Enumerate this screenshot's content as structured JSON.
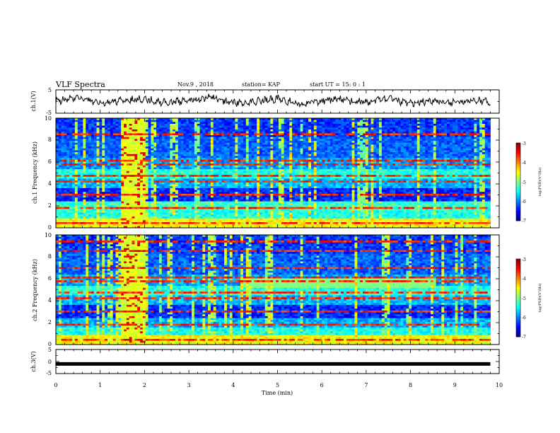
{
  "header": {
    "title": "VLF Spectra",
    "date": "Nov.9 , 2018",
    "station": "station= KAP",
    "start": "start UT = 15: 0 : 1"
  },
  "colors": {
    "spec_low": "#00007f",
    "spec_mid_blue": "#0060ff",
    "spec_cyan": "#19ffe6",
    "spec_green": "#7dff7d",
    "spec_yellow": "#ffe600",
    "spec_red": "#ff1a00",
    "spec_high": "#7f0000",
    "trace": "#000000"
  },
  "chart_data": [
    {
      "type": "line",
      "panel": "waveform-ch1",
      "ylabel": "ch.1(V)",
      "ylim": [
        -5,
        5
      ],
      "yticks": [
        "5",
        "-5"
      ],
      "xlim": [
        0,
        10
      ],
      "series": [
        {
          "x": [
            0,
            0.5,
            1,
            1.5,
            2,
            2.5,
            3,
            3.5,
            4,
            4.5,
            5,
            5.5,
            6,
            6.5,
            7,
            7.5,
            8,
            8.5,
            9,
            9.5,
            9.8
          ],
          "values": [
            0.3,
            1.5,
            -0.8,
            0.6,
            1.0,
            -0.5,
            0.4,
            1.8,
            -0.6,
            0.2,
            1.1,
            -1.2,
            0.5,
            0.8,
            -0.4,
            1.0,
            -0.9,
            0.3,
            -0.6,
            0.9,
            -0.5
          ]
        }
      ]
    },
    {
      "type": "heatmap",
      "panel": "spectrogram-ch1",
      "ylabel": "ch.1 Frequency (kHz)",
      "ylim": [
        0,
        10
      ],
      "yticks": [
        "0",
        "2",
        "4",
        "6",
        "8",
        "10"
      ],
      "xlim": [
        0,
        9.8
      ],
      "burst_interval_min": [
        1.45,
        2.0
      ],
      "colorbar": {
        "label": "log(PSD)(V²/Hz)",
        "range": [
          -7,
          -3
        ],
        "ticks": [
          "-3",
          "-4",
          "-5",
          "-6",
          "-7"
        ]
      }
    },
    {
      "type": "heatmap",
      "panel": "spectrogram-ch2",
      "ylabel": "ch.2 Frequency (kHz)",
      "ylim": [
        0,
        10
      ],
      "yticks": [
        "0",
        "2",
        "4",
        "6",
        "8",
        "10"
      ],
      "xlim": [
        0,
        9.8
      ],
      "burst_interval_min": [
        1.45,
        2.0
      ],
      "colorbar": {
        "label": "log(PSD)(V²/Hz)",
        "range": [
          -7,
          -3
        ],
        "ticks": [
          "-3",
          "-4",
          "-5",
          "-6",
          "-7"
        ]
      }
    },
    {
      "type": "line",
      "panel": "waveform-ch3",
      "ylabel": "ch.3(V)",
      "ylim": [
        -5,
        5
      ],
      "yticks": [
        "5",
        "0",
        "-5"
      ],
      "xlim": [
        0,
        10
      ],
      "xlabel": "Time (min)",
      "xticks": [
        "0",
        "1",
        "2",
        "3",
        "4",
        "5",
        "6",
        "7",
        "8",
        "9",
        "10"
      ],
      "series": [
        {
          "x": [
            0,
            9.8
          ],
          "values": [
            -1,
            -1
          ]
        }
      ]
    }
  ]
}
